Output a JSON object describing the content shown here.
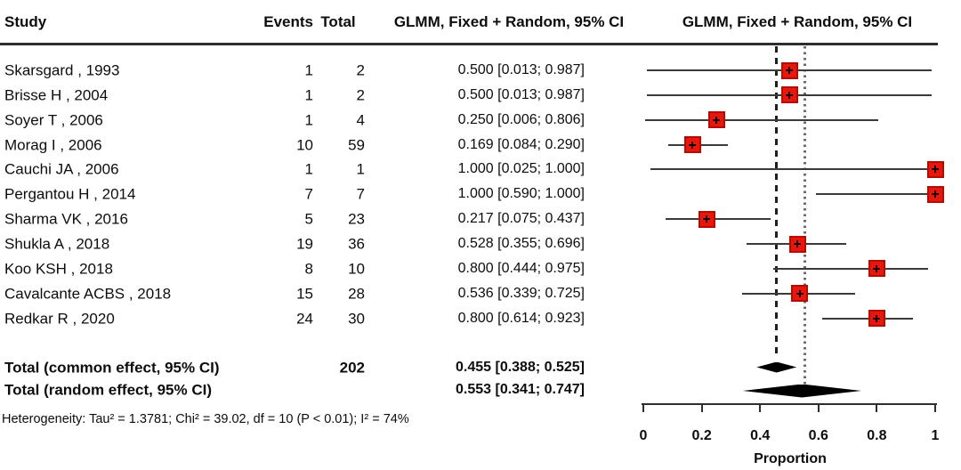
{
  "chart_data": {
    "type": "forest",
    "columns": {
      "study": "Study",
      "events": "Events",
      "total": "Total",
      "effect_ci": "GLMM, Fixed + Random, 95% CI",
      "plot": "GLMM, Fixed + Random, 95% CI"
    },
    "studies": [
      {
        "study": "Skarsgard , 1993",
        "events": 1,
        "total": 2,
        "est": 0.5,
        "lo": 0.013,
        "hi": 0.987,
        "ci_label": "0.500 [0.013; 0.987]"
      },
      {
        "study": "Brisse H , 2004",
        "events": 1,
        "total": 2,
        "est": 0.5,
        "lo": 0.013,
        "hi": 0.987,
        "ci_label": "0.500 [0.013; 0.987]"
      },
      {
        "study": "Soyer T , 2006",
        "events": 1,
        "total": 4,
        "est": 0.25,
        "lo": 0.006,
        "hi": 0.806,
        "ci_label": "0.250 [0.006; 0.806]"
      },
      {
        "study": "Morag I , 2006",
        "events": 10,
        "total": 59,
        "est": 0.169,
        "lo": 0.084,
        "hi": 0.29,
        "ci_label": "0.169 [0.084; 0.290]"
      },
      {
        "study": "Cauchi JA , 2006",
        "events": 1,
        "total": 1,
        "est": 1.0,
        "lo": 0.025,
        "hi": 1.0,
        "ci_label": "1.000 [0.025; 1.000]"
      },
      {
        "study": "Pergantou H , 2014",
        "events": 7,
        "total": 7,
        "est": 1.0,
        "lo": 0.59,
        "hi": 1.0,
        "ci_label": "1.000 [0.590; 1.000]"
      },
      {
        "study": "Sharma VK , 2016",
        "events": 5,
        "total": 23,
        "est": 0.217,
        "lo": 0.075,
        "hi": 0.437,
        "ci_label": "0.217 [0.075; 0.437]"
      },
      {
        "study": "Shukla A , 2018",
        "events": 19,
        "total": 36,
        "est": 0.528,
        "lo": 0.355,
        "hi": 0.696,
        "ci_label": "0.528 [0.355; 0.696]"
      },
      {
        "study": "Koo KSH , 2018",
        "events": 8,
        "total": 10,
        "est": 0.8,
        "lo": 0.444,
        "hi": 0.975,
        "ci_label": "0.800 [0.444; 0.975]"
      },
      {
        "study": "Cavalcante ACBS , 2018",
        "events": 15,
        "total": 28,
        "est": 0.536,
        "lo": 0.339,
        "hi": 0.725,
        "ci_label": "0.536 [0.339; 0.725]"
      },
      {
        "study": "Redkar R , 2020",
        "events": 24,
        "total": 30,
        "est": 0.8,
        "lo": 0.614,
        "hi": 0.923,
        "ci_label": "0.800 [0.614; 0.923]"
      }
    ],
    "totals": [
      {
        "label": "Total (common effect, 95% CI)",
        "total": 202,
        "est": 0.455,
        "lo": 0.388,
        "hi": 0.525,
        "ci_label": "0.455 [0.388; 0.525]"
      },
      {
        "label": "Total (random effect, 95% CI)",
        "est": 0.553,
        "lo": 0.341,
        "hi": 0.747,
        "ci_label": "0.553 [0.341; 0.747]"
      }
    ],
    "heterogeneity": "Heterogeneity: Tau² = 1.3781; Chi² = 39.02, df = 10 (P < 0.01); I² = 74%",
    "xlabel": "Proportion",
    "xlim": [
      0,
      1
    ],
    "xticks": [
      0,
      0.2,
      0.4,
      0.6,
      0.8,
      1
    ],
    "reference_lines": [
      {
        "style": "dashed",
        "x": 0.455
      },
      {
        "style": "dotted",
        "x": 0.553
      }
    ],
    "colors": {
      "marker_fill": "#e8170d",
      "marker_border": "#b50c00",
      "ci_line": "#3a3a3a",
      "diamond": "#000000",
      "axis": "#2e2e2e"
    }
  }
}
